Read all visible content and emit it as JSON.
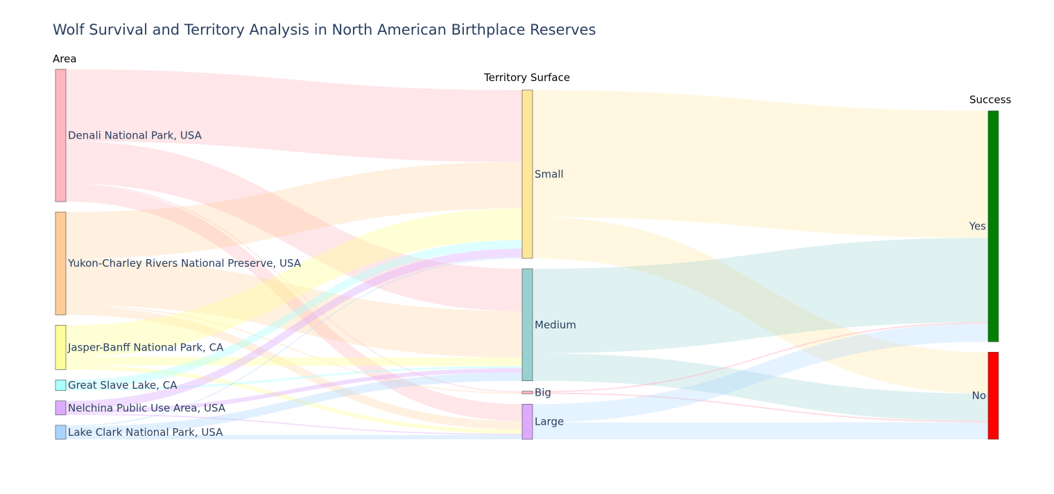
{
  "chart_data": {
    "type": "sankey",
    "title": "Wolf Survival and Territory Analysis in North American Birthplace Reserves",
    "columns": [
      "Area",
      "Territory Surface",
      "Success"
    ],
    "nodes": [
      {
        "id": "denali",
        "label": "Denali National Park, USA",
        "column": 0,
        "color": "#FFB6C1"
      },
      {
        "id": "yukon",
        "label": "Yukon-Charley Rivers National Preserve, USA",
        "column": 0,
        "color": "#FFCC99"
      },
      {
        "id": "jasper",
        "label": "Jasper-Banff National Park, CA",
        "column": 0,
        "color": "#FFFF99"
      },
      {
        "id": "slave",
        "label": "Great Slave Lake, CA",
        "column": 0,
        "color": "#AAFFFF"
      },
      {
        "id": "nelchina",
        "label": "Nelchina Public Use Area, USA",
        "column": 0,
        "color": "#DDAAFF"
      },
      {
        "id": "clark",
        "label": "Lake Clark National Park, USA",
        "column": 0,
        "color": "#AAD4FF"
      },
      {
        "id": "small",
        "label": "Small",
        "column": 1,
        "color": "#FFE699"
      },
      {
        "id": "medium",
        "label": "Medium",
        "column": 1,
        "color": "#99D0D0"
      },
      {
        "id": "big",
        "label": "Big",
        "column": 1,
        "color": "#FFB6C1"
      },
      {
        "id": "large",
        "label": "Large",
        "column": 1,
        "color": "#DDAAFF"
      },
      {
        "id": "yes",
        "label": "Yes",
        "column": 2,
        "color": "#008000"
      },
      {
        "id": "no",
        "label": "No",
        "column": 2,
        "color": "#FF0000"
      }
    ],
    "links": [
      {
        "source": "denali",
        "target": "small",
        "value": 17,
        "color": "rgba(255,182,193,0.35)"
      },
      {
        "source": "denali",
        "target": "medium",
        "value": 10,
        "color": "rgba(255,182,193,0.35)"
      },
      {
        "source": "denali",
        "target": "big",
        "value": 0.3,
        "color": "rgba(255,182,193,0.35)"
      },
      {
        "source": "denali",
        "target": "large",
        "value": 4,
        "color": "rgba(255,182,193,0.35)"
      },
      {
        "source": "yukon",
        "target": "small",
        "value": 11,
        "color": "rgba(255,204,153,0.30)"
      },
      {
        "source": "yukon",
        "target": "medium",
        "value": 11,
        "color": "rgba(255,204,153,0.30)"
      },
      {
        "source": "yukon",
        "target": "big",
        "value": 0.3,
        "color": "rgba(255,204,153,0.30)"
      },
      {
        "source": "yukon",
        "target": "large",
        "value": 2,
        "color": "rgba(255,204,153,0.30)"
      },
      {
        "source": "jasper",
        "target": "small",
        "value": 7.5,
        "color": "rgba(255,255,153,0.40)"
      },
      {
        "source": "jasper",
        "target": "medium",
        "value": 2,
        "color": "rgba(255,255,153,0.40)"
      },
      {
        "source": "jasper",
        "target": "large",
        "value": 1,
        "color": "rgba(255,255,153,0.40)"
      },
      {
        "source": "slave",
        "target": "small",
        "value": 2,
        "color": "rgba(170,255,255,0.40)"
      },
      {
        "source": "slave",
        "target": "medium",
        "value": 0.5,
        "color": "rgba(170,255,255,0.40)"
      },
      {
        "source": "nelchina",
        "target": "small",
        "value": 2,
        "color": "rgba(221,170,255,0.40)"
      },
      {
        "source": "nelchina",
        "target": "medium",
        "value": 1,
        "color": "rgba(221,170,255,0.40)"
      },
      {
        "source": "nelchina",
        "target": "large",
        "value": 0.3,
        "color": "rgba(221,170,255,0.40)"
      },
      {
        "source": "clark",
        "target": "small",
        "value": 0.3,
        "color": "rgba(170,212,255,0.35)"
      },
      {
        "source": "clark",
        "target": "medium",
        "value": 2,
        "color": "rgba(170,212,255,0.35)"
      },
      {
        "source": "clark",
        "target": "large",
        "value": 1,
        "color": "rgba(170,212,255,0.35)"
      },
      {
        "source": "small",
        "target": "yes",
        "value": 30,
        "color": "rgba(255,230,153,0.30)"
      },
      {
        "source": "small",
        "target": "no",
        "value": 9.8,
        "color": "rgba(255,230,153,0.30)"
      },
      {
        "source": "medium",
        "target": "yes",
        "value": 20,
        "color": "rgba(153,208,208,0.30)"
      },
      {
        "source": "medium",
        "target": "no",
        "value": 6.5,
        "color": "rgba(153,208,208,0.30)"
      },
      {
        "source": "big",
        "target": "yes",
        "value": 0.3,
        "color": "rgba(255,182,193,0.50)"
      },
      {
        "source": "big",
        "target": "no",
        "value": 0.3,
        "color": "rgba(255,182,193,0.50)"
      },
      {
        "source": "large",
        "target": "yes",
        "value": 4.3,
        "color": "rgba(170,212,255,0.30)"
      },
      {
        "source": "large",
        "target": "no",
        "value": 4,
        "color": "rgba(170,212,255,0.30)"
      }
    ]
  }
}
